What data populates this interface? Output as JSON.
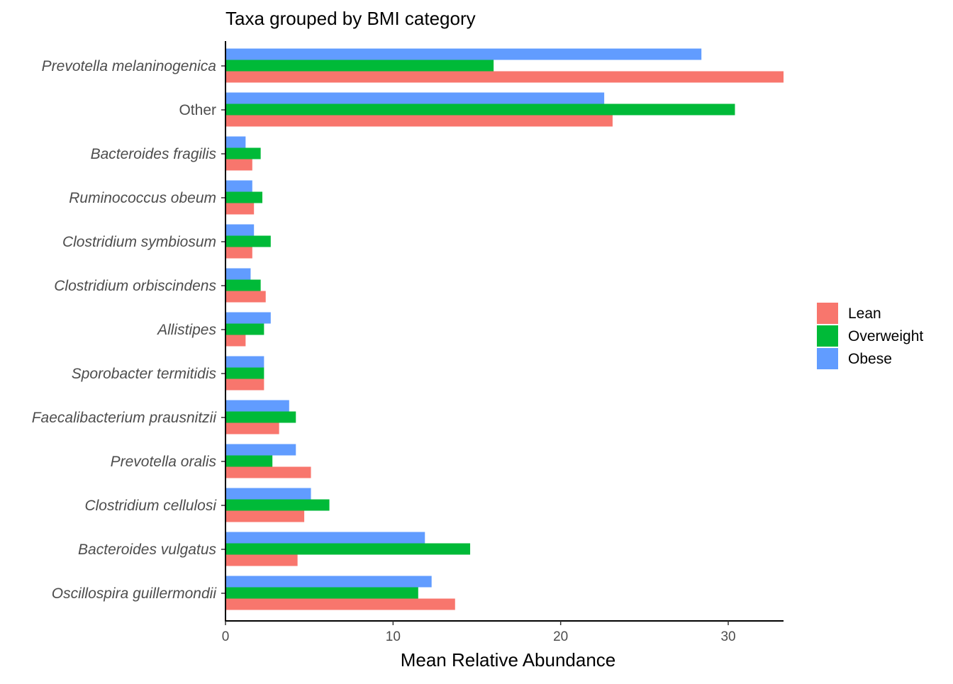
{
  "chart_data": {
    "type": "bar",
    "orientation": "horizontal",
    "title": "Taxa grouped by BMI category",
    "xlabel": "Mean Relative Abundance",
    "ylabel": "",
    "xlim": [
      0,
      33.3
    ],
    "x_ticks": [
      0,
      10,
      20,
      30
    ],
    "grid": false,
    "legend_position": "right",
    "categories": [
      "Prevotella melaninogenica",
      "Other",
      "Bacteroides fragilis",
      "Ruminococcus obeum",
      "Clostridium symbiosum",
      "Clostridium orbiscindens",
      "Allistipes",
      "Sporobacter termitidis",
      "Faecalibacterium prausnitzii",
      "Prevotella oralis",
      "Clostridium cellulosi",
      "Bacteroides vulgatus",
      "Oscillospira guillermondii"
    ],
    "category_italic": [
      true,
      false,
      true,
      true,
      true,
      true,
      true,
      true,
      true,
      true,
      true,
      true,
      true
    ],
    "series": [
      {
        "name": "Lean",
        "color": "#f8766d",
        "values": [
          33.3,
          23.1,
          1.6,
          1.7,
          1.6,
          2.4,
          1.2,
          2.3,
          3.2,
          5.1,
          4.7,
          4.3,
          13.7
        ]
      },
      {
        "name": "Overweight",
        "color": "#00ba38",
        "values": [
          16.0,
          30.4,
          2.1,
          2.2,
          2.7,
          2.1,
          2.3,
          2.3,
          4.2,
          2.8,
          6.2,
          14.6,
          11.5
        ]
      },
      {
        "name": "Obese",
        "color": "#619cff",
        "values": [
          28.4,
          22.6,
          1.2,
          1.6,
          1.7,
          1.5,
          2.7,
          2.3,
          3.8,
          4.2,
          5.1,
          11.9,
          12.3
        ]
      }
    ]
  }
}
